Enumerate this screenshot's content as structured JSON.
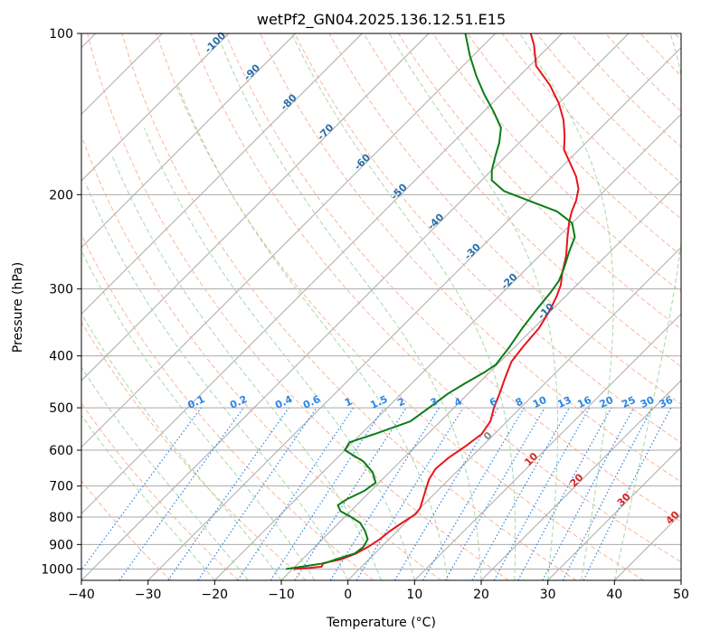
{
  "chart_data": {
    "type": "line",
    "title": "wetPf2_GN04.2025.136.12.51.E15",
    "xlabel": "Temperature (°C)",
    "ylabel": "Pressure (hPa)",
    "xlim": [
      -40,
      50
    ],
    "ylim": [
      1050,
      100
    ],
    "yscale": "log",
    "skew": "skew-T log-p",
    "grid": true,
    "x_ticks": [
      -40,
      -30,
      -20,
      -10,
      0,
      10,
      20,
      30,
      40,
      50
    ],
    "y_ticks": [
      100,
      200,
      300,
      400,
      500,
      600,
      700,
      800,
      900,
      1000
    ],
    "series": [
      {
        "color": "#e8141c",
        "points": [
          [
            1000,
            -9.8
          ],
          [
            995,
            -7.5
          ],
          [
            990,
            -6.0
          ],
          [
            975,
            -6.3
          ],
          [
            960,
            -4.2
          ],
          [
            935,
            -2.8
          ],
          [
            910,
            -2.0
          ],
          [
            880,
            -1.4
          ],
          [
            850,
            -1.1
          ],
          [
            820,
            -0.5
          ],
          [
            790,
            0.2
          ],
          [
            770,
            0.0
          ],
          [
            745,
            -0.8
          ],
          [
            715,
            -1.8
          ],
          [
            680,
            -3.0
          ],
          [
            650,
            -3.6
          ],
          [
            620,
            -3.3
          ],
          [
            590,
            -2.5
          ],
          [
            560,
            -1.9
          ],
          [
            530,
            -2.5
          ],
          [
            500,
            -4.0
          ],
          [
            470,
            -5.3
          ],
          [
            440,
            -6.8
          ],
          [
            410,
            -8.3
          ],
          [
            385,
            -8.8
          ],
          [
            355,
            -9.2
          ],
          [
            330,
            -10.2
          ],
          [
            310,
            -11.3
          ],
          [
            295,
            -12.4
          ],
          [
            280,
            -14.0
          ],
          [
            260,
            -16.0
          ],
          [
            240,
            -18.6
          ],
          [
            225,
            -20.6
          ],
          [
            215,
            -21.8
          ],
          [
            205,
            -22.8
          ],
          [
            195,
            -24.2
          ],
          [
            185,
            -26.4
          ],
          [
            175,
            -29.2
          ],
          [
            165,
            -32.2
          ],
          [
            155,
            -34.3
          ],
          [
            145,
            -36.8
          ],
          [
            135,
            -40.0
          ],
          [
            125,
            -44.0
          ],
          [
            115,
            -49.0
          ],
          [
            105,
            -52.5
          ],
          [
            100,
            -54.7
          ]
        ]
      },
      {
        "color": "#0a7d14",
        "points": [
          [
            1000,
            -11.0
          ],
          [
            990,
            -9.0
          ],
          [
            975,
            -6.0
          ],
          [
            960,
            -5.0
          ],
          [
            935,
            -3.0
          ],
          [
            910,
            -2.7
          ],
          [
            880,
            -3.2
          ],
          [
            850,
            -4.8
          ],
          [
            820,
            -6.8
          ],
          [
            800,
            -9.0
          ],
          [
            780,
            -11.5
          ],
          [
            760,
            -12.8
          ],
          [
            740,
            -12.3
          ],
          [
            715,
            -11.0
          ],
          [
            690,
            -10.5
          ],
          [
            660,
            -12.5
          ],
          [
            630,
            -15.5
          ],
          [
            600,
            -20.0
          ],
          [
            580,
            -20.5
          ],
          [
            560,
            -18.0
          ],
          [
            530,
            -14.5
          ],
          [
            510,
            -14.0
          ],
          [
            490,
            -13.5
          ],
          [
            470,
            -13.0
          ],
          [
            450,
            -12.0
          ],
          [
            430,
            -10.8
          ],
          [
            415,
            -10.2
          ],
          [
            400,
            -10.5
          ],
          [
            385,
            -10.8
          ],
          [
            355,
            -11.7
          ],
          [
            330,
            -12.3
          ],
          [
            305,
            -12.8
          ],
          [
            290,
            -13.3
          ],
          [
            275,
            -14.4
          ],
          [
            255,
            -16.2
          ],
          [
            240,
            -17.5
          ],
          [
            226,
            -20.0
          ],
          [
            215,
            -24.0
          ],
          [
            205,
            -30.0
          ],
          [
            197,
            -35.0
          ],
          [
            188,
            -38.5
          ],
          [
            180,
            -40.0
          ],
          [
            170,
            -41.5
          ],
          [
            160,
            -43.0
          ],
          [
            150,
            -45.0
          ],
          [
            140,
            -48.5
          ],
          [
            130,
            -52.5
          ],
          [
            120,
            -56.5
          ],
          [
            110,
            -60.5
          ],
          [
            100,
            -64.5
          ]
        ]
      }
    ],
    "dry_adiabat_labels": [
      "-100",
      "-90",
      "-80",
      "-70",
      "-60",
      "-50",
      "-40",
      "-30",
      "-20",
      "-10",
      "0",
      "10",
      "20",
      "30",
      "40"
    ],
    "mixing_ratio_labels": [
      "0.1",
      "0.2",
      "0.4",
      "0.6",
      "1",
      "1.5",
      "2",
      "3",
      "4",
      "6",
      "8",
      "10",
      "13",
      "16",
      "20",
      "25",
      "30",
      "36"
    ],
    "mixing_ratio_values": [
      0.1,
      0.2,
      0.4,
      0.6,
      1,
      1.5,
      2,
      3,
      4,
      6,
      8,
      10,
      13,
      16,
      20,
      25,
      30,
      36
    ],
    "colors": {
      "isotherm": "#a9a9a9",
      "dry_adiabat": "#f7a98c",
      "moist_adiabat": "#9fd3a0",
      "mixing_ratio": "#2a86e6",
      "label_cold": "#2a6fa8",
      "label_zero": "#888888",
      "label_warm": "#d62728"
    }
  }
}
